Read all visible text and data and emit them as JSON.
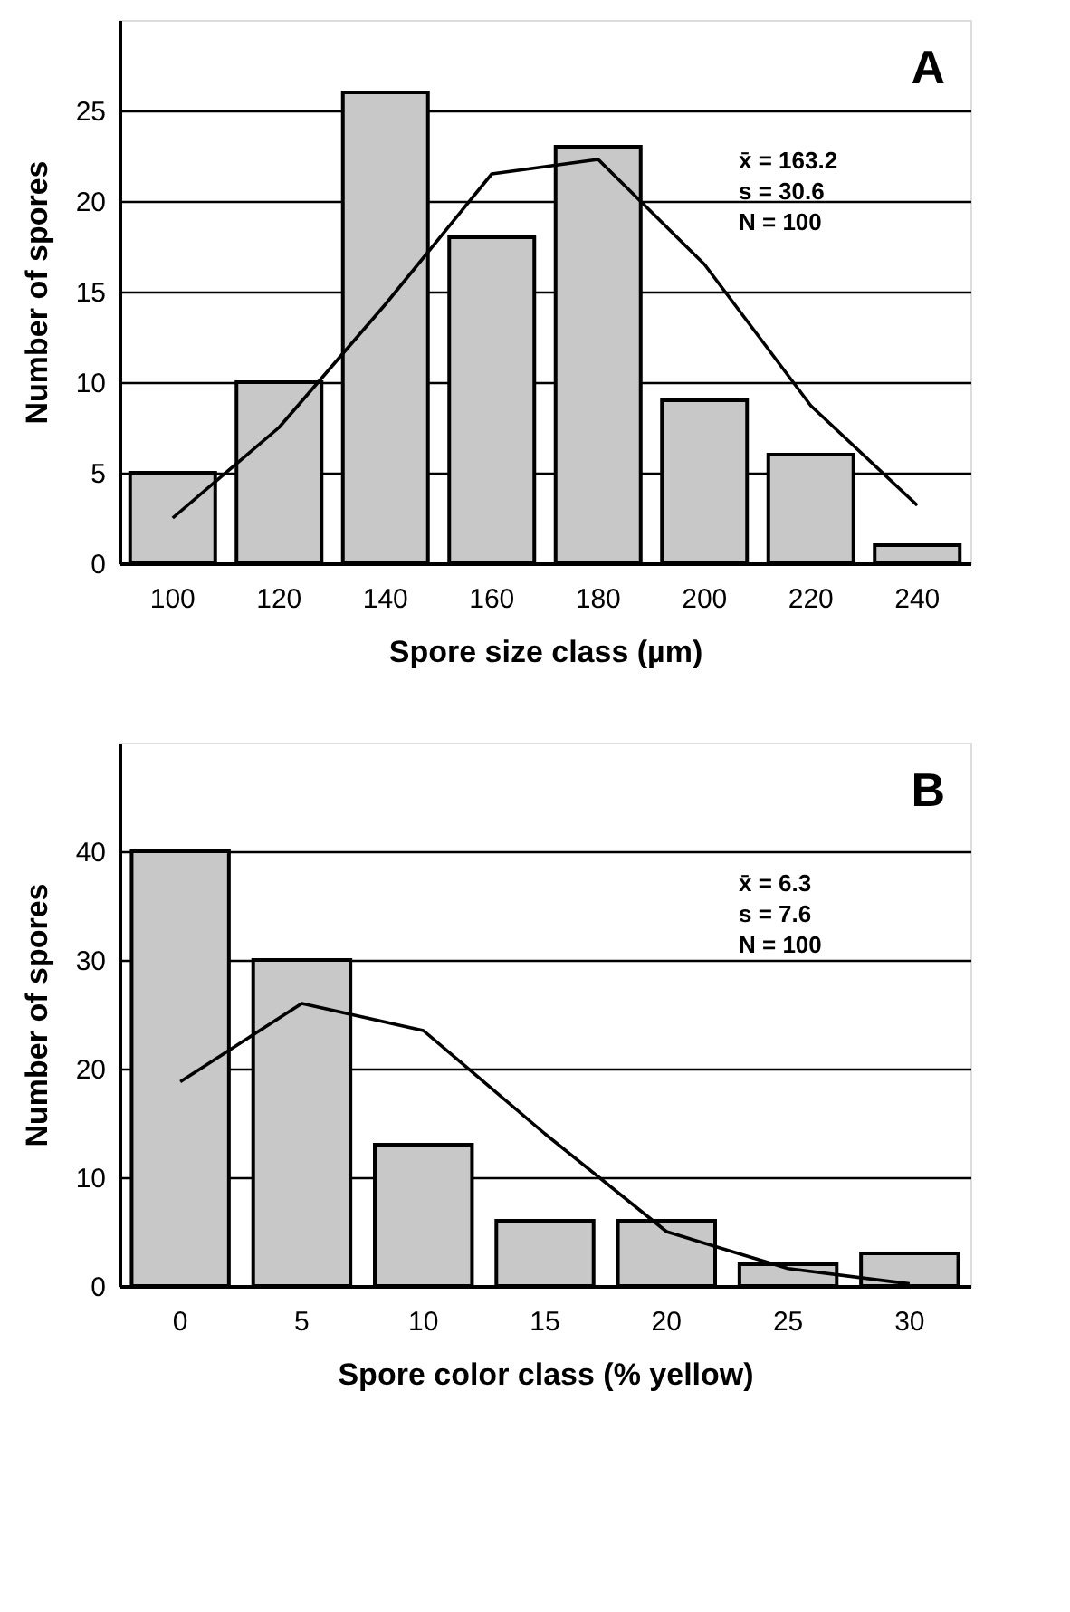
{
  "chart_data": [
    {
      "type": "bar",
      "title": "A",
      "xlabel": "Spore size class (µm)",
      "ylabel": "Number of spores",
      "categories": [
        "100",
        "120",
        "140",
        "160",
        "180",
        "200",
        "220",
        "240"
      ],
      "series": [
        {
          "color": "#c8c8c8",
          "values": [
            5,
            10,
            26,
            18,
            23,
            9,
            6,
            1
          ]
        },
        {
          "type": "line",
          "color": "#000000",
          "values": [
            2.5,
            7.5,
            14.3,
            21.5,
            22.3,
            16.5,
            8.7,
            3.2
          ]
        }
      ],
      "ylim": [
        0,
        30
      ],
      "yticks": [
        0,
        5,
        10,
        15,
        20,
        25
      ],
      "grid": "y",
      "marker": "none",
      "annotations": [
        "x̄ = 163.2",
        "s = 30.6",
        "N = 100"
      ]
    },
    {
      "type": "bar",
      "title": "B",
      "xlabel": "Spore color class (% yellow)",
      "ylabel": "Number of spores",
      "categories": [
        "0",
        "5",
        "10",
        "15",
        "20",
        "25",
        "30"
      ],
      "series": [
        {
          "color": "#c8c8c8",
          "values": [
            40,
            30,
            13,
            6,
            6,
            2,
            3
          ]
        },
        {
          "type": "line",
          "color": "#000000",
          "values": [
            18.8,
            26,
            23.5,
            14,
            5,
            1.6,
            0.2
          ]
        }
      ],
      "ylim": [
        0,
        50
      ],
      "yticks": [
        0,
        10,
        20,
        30,
        40
      ],
      "grid": "y",
      "marker": "none",
      "annotations": [
        "x̄ = 6.3",
        "s = 7.6",
        "N = 100"
      ]
    }
  ]
}
